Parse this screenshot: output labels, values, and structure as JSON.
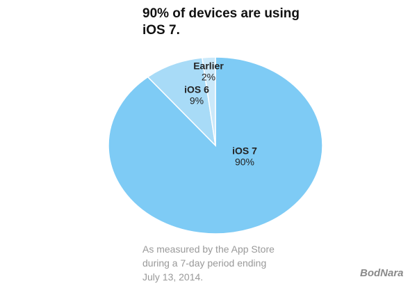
{
  "chart_data": {
    "type": "pie",
    "title": "90% of devices are using iOS 7.",
    "categories": [
      "iOS 7",
      "iOS 6",
      "Earlier"
    ],
    "values": [
      90,
      9,
      2
    ],
    "value_labels": [
      "90%",
      "9%",
      "2%"
    ],
    "colors": [
      "#7ecbf5",
      "#a8dbf7",
      "#cbe9fa"
    ],
    "note": "As measured by the App Store during a 7-day period ending July 13, 2014.",
    "watermark": "BodNara"
  }
}
